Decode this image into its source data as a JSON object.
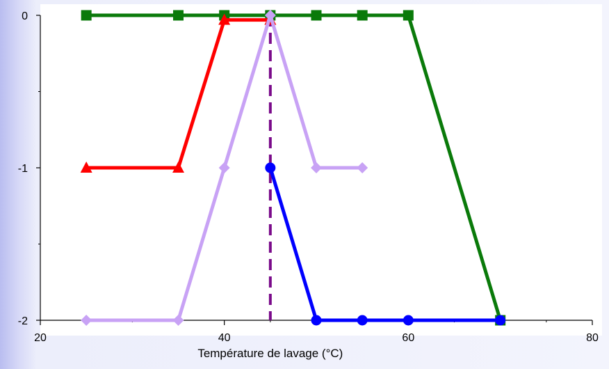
{
  "chart_data": {
    "type": "line",
    "xlabel": "Température de lavage (°C)",
    "ylabel": "",
    "xlim": [
      20,
      80
    ],
    "ylim": [
      -2,
      0
    ],
    "xticks": [
      20,
      40,
      60,
      80
    ],
    "yticks": [
      0,
      -1,
      -2
    ],
    "grid": false,
    "legend": "none",
    "series": [
      {
        "color": "#0a7a0a",
        "marker": "square",
        "x": [
          25,
          35,
          40,
          45,
          50,
          55,
          60,
          70
        ],
        "y": [
          0,
          0,
          0,
          0,
          0,
          0,
          0,
          -2
        ]
      },
      {
        "color": "#ff0000",
        "marker": "triangle",
        "x": [
          25,
          35,
          40,
          45
        ],
        "y": [
          -1,
          -1,
          -0.03,
          -0.03
        ]
      },
      {
        "color": "#c8a2f5",
        "marker": "diamond",
        "x": [
          25,
          35,
          40,
          45,
          50,
          55
        ],
        "y": [
          -2,
          -2,
          -1,
          0,
          -1,
          -1
        ]
      },
      {
        "color": "#0000ff",
        "marker": "circle",
        "x": [
          45,
          50,
          55,
          60,
          70
        ],
        "y": [
          -1,
          -2,
          -2,
          -2,
          -2
        ]
      }
    ],
    "annotations": [
      {
        "type": "vertical-dashed-line",
        "x": 45,
        "color": "#7a0a8a"
      }
    ]
  }
}
